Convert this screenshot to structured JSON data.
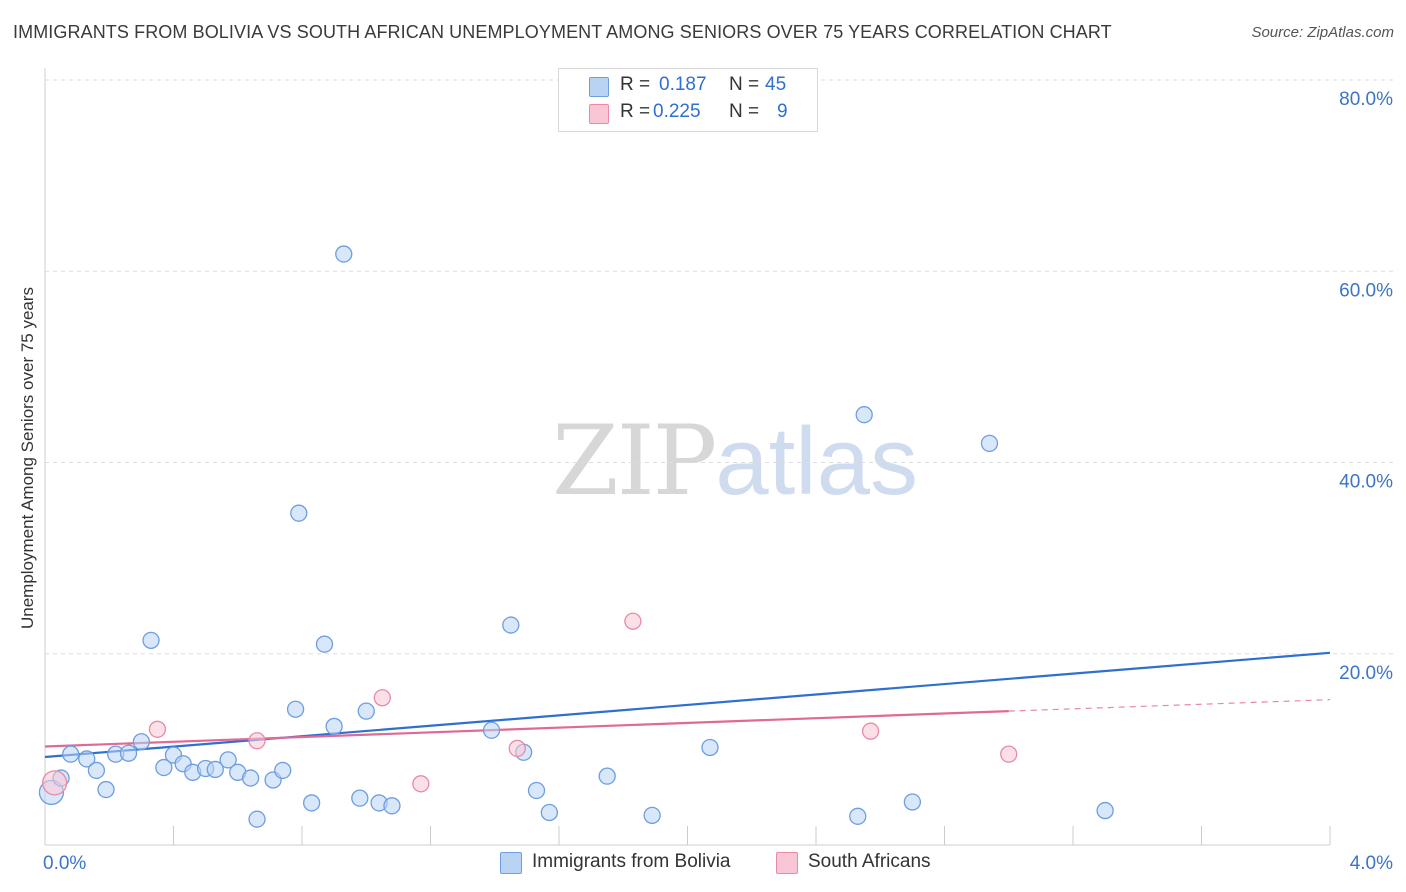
{
  "title": "IMMIGRANTS FROM BOLIVIA VS SOUTH AFRICAN UNEMPLOYMENT AMONG SENIORS OVER 75 YEARS CORRELATION CHART",
  "source": "Source: ZipAtlas.com",
  "watermark": {
    "zip": "ZIP",
    "atlas": "atlas"
  },
  "legend": {
    "rows": [
      {
        "r_label": "R =",
        "r_value": "0.187",
        "n_label": "N =",
        "n_value": "45"
      },
      {
        "r_label": "R =",
        "r_value": "0.225",
        "n_label": "N =",
        "n_value": "9"
      }
    ]
  },
  "colors": {
    "blue_fill": "#b9d3f5",
    "blue_stroke": "#6d9ee0",
    "blue_line": "#2f6fd0",
    "pink_fill": "#f9c6d6",
    "pink_stroke": "#e88aa8",
    "pink_line": "#e06a95",
    "tick_text": "#3b74c9",
    "grid": "#dddddd"
  },
  "chart_data": {
    "type": "scatter",
    "title": "IMMIGRANTS FROM BOLIVIA VS SOUTH AFRICAN UNEMPLOYMENT AMONG SENIORS OVER 75 YEARS CORRELATION CHART",
    "xlabel": "",
    "ylabel": "Unemployment Among Seniors over 75 years",
    "xlim": [
      0,
      4.0
    ],
    "ylim": [
      0,
      80
    ],
    "x_tick_labels": [
      "0.0%",
      "4.0%"
    ],
    "y_ticks": [
      20,
      40,
      60,
      80
    ],
    "y_tick_labels": [
      "20.0%",
      "40.0%",
      "60.0%",
      "80.0%"
    ],
    "series": [
      {
        "name": "Immigrants from Bolivia",
        "color": "blue",
        "points": [
          [
            0.02,
            5.5
          ],
          [
            0.05,
            7.0
          ],
          [
            0.08,
            9.5
          ],
          [
            0.13,
            9.0
          ],
          [
            0.16,
            7.8
          ],
          [
            0.19,
            5.8
          ],
          [
            0.22,
            9.5
          ],
          [
            0.26,
            9.6
          ],
          [
            0.3,
            10.8
          ],
          [
            0.33,
            21.4
          ],
          [
            0.37,
            8.1
          ],
          [
            0.4,
            9.4
          ],
          [
            0.43,
            8.5
          ],
          [
            0.46,
            7.6
          ],
          [
            0.5,
            8.0
          ],
          [
            0.53,
            7.9
          ],
          [
            0.57,
            8.9
          ],
          [
            0.6,
            7.6
          ],
          [
            0.64,
            7.0
          ],
          [
            0.66,
            2.7
          ],
          [
            0.71,
            6.8
          ],
          [
            0.74,
            7.8
          ],
          [
            0.78,
            14.2
          ],
          [
            0.79,
            34.7
          ],
          [
            0.83,
            4.4
          ],
          [
            0.87,
            21.0
          ],
          [
            0.9,
            12.4
          ],
          [
            0.93,
            61.8
          ],
          [
            0.98,
            4.9
          ],
          [
            1.0,
            14.0
          ],
          [
            1.04,
            4.4
          ],
          [
            1.08,
            4.1
          ],
          [
            1.39,
            12.0
          ],
          [
            1.45,
            23.0
          ],
          [
            1.49,
            9.7
          ],
          [
            1.53,
            5.7
          ],
          [
            1.57,
            3.4
          ],
          [
            1.75,
            7.2
          ],
          [
            1.89,
            3.1
          ],
          [
            2.07,
            10.2
          ],
          [
            2.53,
            3.0
          ],
          [
            2.55,
            45.0
          ],
          [
            2.7,
            4.5
          ],
          [
            2.94,
            42.0
          ],
          [
            3.3,
            3.6
          ]
        ],
        "trend": {
          "x": [
            0.0,
            4.0
          ],
          "y": [
            9.2,
            20.1
          ]
        }
      },
      {
        "name": "South Africans",
        "color": "pink",
        "points": [
          [
            0.03,
            6.5
          ],
          [
            0.35,
            12.1
          ],
          [
            0.66,
            10.9
          ],
          [
            1.05,
            15.4
          ],
          [
            1.17,
            6.4
          ],
          [
            1.47,
            10.1
          ],
          [
            1.83,
            23.4
          ],
          [
            2.57,
            11.9
          ],
          [
            3.0,
            9.5
          ]
        ],
        "trend": {
          "x": [
            0.0,
            3.0
          ],
          "y": [
            10.3,
            14.0
          ]
        },
        "trend_dashed": {
          "x": [
            3.0,
            4.0
          ],
          "y": [
            14.0,
            15.2
          ]
        }
      }
    ],
    "legend": [
      "Immigrants from Bolivia",
      "South Africans"
    ],
    "grid": true
  }
}
